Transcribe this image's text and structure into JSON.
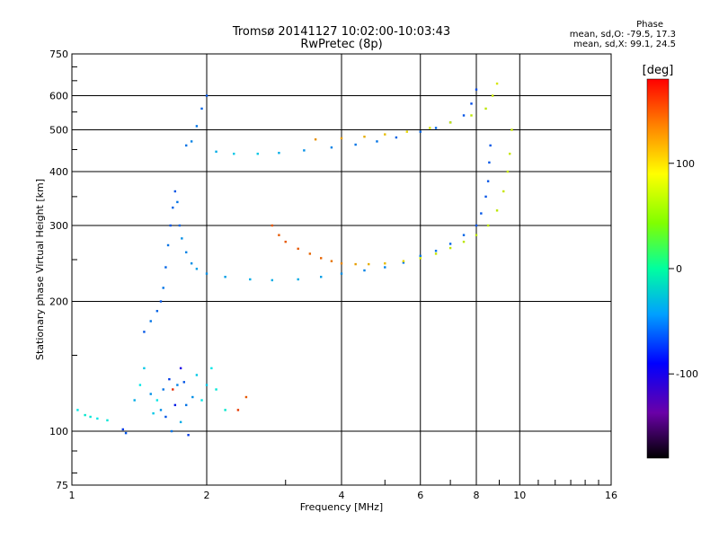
{
  "chart_data": {
    "type": "scatter",
    "title": "Tromsø 20141127 10:02:00-10:03:43",
    "subtitle": "RwPretec (8p)",
    "xlabel": "Frequency [MHz]",
    "ylabel": "Stationary phase Virtual Height [km]",
    "x_scale": "log",
    "y_scale": "log",
    "xlim": [
      1,
      16
    ],
    "ylim": [
      75,
      750
    ],
    "x_ticks": [
      1,
      2,
      4,
      6,
      8,
      10,
      16
    ],
    "y_ticks": [
      75,
      100,
      200,
      300,
      400,
      500,
      600,
      750
    ],
    "grid": true,
    "phase_legend": {
      "heading": "Phase",
      "line_o": "mean, sd,O: -79.5, 17.3",
      "line_x": "mean, sd,X:  99.1, 24.5"
    },
    "colorbar": {
      "label": "[deg]",
      "range": [
        -180,
        180
      ],
      "ticks": [
        100,
        0,
        -100
      ]
    },
    "series": [
      {
        "points": [
          [
            1.03,
            112,
            -60
          ],
          [
            1.07,
            109,
            -50
          ],
          [
            1.1,
            108,
            -55
          ],
          [
            1.14,
            107,
            -60
          ],
          [
            1.2,
            106,
            -55
          ],
          [
            1.3,
            101,
            -120
          ],
          [
            1.32,
            99,
            -110
          ],
          [
            1.38,
            118,
            -80
          ],
          [
            1.42,
            128,
            -60
          ],
          [
            1.45,
            140,
            -70
          ],
          [
            1.5,
            122,
            -90
          ],
          [
            1.52,
            110,
            -70
          ],
          [
            1.55,
            118,
            -60
          ],
          [
            1.58,
            112,
            -90
          ],
          [
            1.6,
            125,
            -100
          ],
          [
            1.62,
            108,
            -110
          ],
          [
            1.65,
            132,
            -120
          ],
          [
            1.67,
            100,
            -100
          ],
          [
            1.7,
            115,
            -130
          ],
          [
            1.72,
            128,
            -95
          ],
          [
            1.75,
            105,
            -80
          ],
          [
            1.78,
            130,
            -110
          ],
          [
            1.8,
            115,
            -100
          ],
          [
            1.82,
            98,
            -120
          ],
          [
            1.86,
            120,
            -90
          ],
          [
            1.9,
            135,
            -70
          ],
          [
            1.95,
            118,
            -60
          ],
          [
            2.0,
            128,
            -70
          ],
          [
            2.05,
            140,
            -60
          ],
          [
            2.1,
            125,
            -55
          ],
          [
            2.2,
            112,
            -50
          ],
          [
            2.35,
            112,
            160
          ],
          [
            2.45,
            120,
            150
          ],
          [
            1.68,
            125,
            165
          ],
          [
            1.75,
            140,
            -150
          ]
        ]
      },
      {
        "points": [
          [
            1.45,
            170,
            -110
          ],
          [
            1.5,
            180,
            -100
          ],
          [
            1.55,
            190,
            -105
          ],
          [
            1.58,
            200,
            -110
          ],
          [
            1.6,
            215,
            -100
          ],
          [
            1.62,
            240,
            -105
          ],
          [
            1.64,
            270,
            -100
          ],
          [
            1.66,
            300,
            -110
          ],
          [
            1.68,
            330,
            -105
          ],
          [
            1.7,
            360,
            -110
          ],
          [
            1.72,
            340,
            -100
          ],
          [
            1.74,
            300,
            -105
          ],
          [
            1.76,
            280,
            -90
          ],
          [
            1.8,
            260,
            -95
          ],
          [
            1.85,
            245,
            -90
          ],
          [
            1.9,
            238,
            -85
          ],
          [
            2.0,
            232,
            -90
          ],
          [
            2.2,
            228,
            -85
          ],
          [
            2.5,
            225,
            -80
          ],
          [
            2.8,
            224,
            -80
          ],
          [
            3.2,
            225,
            -80
          ],
          [
            3.6,
            228,
            -85
          ],
          [
            4.0,
            232,
            -90
          ],
          [
            4.5,
            236,
            -95
          ],
          [
            5.0,
            240,
            -95
          ],
          [
            5.5,
            246,
            -100
          ],
          [
            6.0,
            255,
            -100
          ],
          [
            6.5,
            262,
            -100
          ],
          [
            7.0,
            272,
            -105
          ],
          [
            7.5,
            285,
            -105
          ],
          [
            8.0,
            300,
            -110
          ],
          [
            8.2,
            320,
            -110
          ],
          [
            8.4,
            350,
            -110
          ],
          [
            8.5,
            380,
            -110
          ],
          [
            8.55,
            420,
            -110
          ],
          [
            8.6,
            460,
            -110
          ]
        ]
      },
      {
        "points": [
          [
            1.8,
            460,
            -100
          ],
          [
            1.85,
            470,
            -95
          ],
          [
            1.9,
            510,
            -100
          ],
          [
            1.95,
            560,
            -105
          ],
          [
            2.0,
            600,
            -110
          ],
          [
            2.1,
            445,
            -80
          ],
          [
            2.3,
            440,
            -70
          ],
          [
            2.6,
            440,
            -70
          ],
          [
            2.9,
            442,
            -80
          ],
          [
            3.3,
            448,
            -90
          ],
          [
            3.8,
            455,
            -95
          ],
          [
            4.3,
            462,
            -100
          ],
          [
            4.8,
            470,
            -100
          ],
          [
            5.3,
            480,
            -105
          ],
          [
            6.0,
            495,
            -105
          ],
          [
            6.5,
            505,
            -105
          ],
          [
            7.0,
            520,
            -110
          ],
          [
            7.5,
            540,
            -110
          ],
          [
            7.8,
            575,
            -115
          ],
          [
            8.0,
            620,
            -115
          ]
        ]
      },
      {
        "points": [
          [
            2.8,
            300,
            150
          ],
          [
            2.9,
            285,
            150
          ],
          [
            3.0,
            275,
            150
          ],
          [
            3.2,
            265,
            150
          ],
          [
            3.4,
            258,
            145
          ],
          [
            3.6,
            252,
            145
          ],
          [
            3.8,
            248,
            140
          ],
          [
            4.0,
            245,
            135
          ],
          [
            4.3,
            244,
            125
          ],
          [
            4.6,
            244,
            120
          ],
          [
            5.0,
            245,
            115
          ],
          [
            5.5,
            248,
            105
          ],
          [
            6.0,
            252,
            95
          ],
          [
            6.5,
            258,
            90
          ],
          [
            7.0,
            266,
            85
          ],
          [
            7.5,
            275,
            85
          ],
          [
            8.0,
            285,
            85
          ],
          [
            8.5,
            300,
            85
          ],
          [
            8.9,
            325,
            85
          ],
          [
            9.2,
            360,
            90
          ],
          [
            9.4,
            400,
            90
          ],
          [
            9.5,
            440,
            90
          ],
          [
            9.6,
            500,
            90
          ]
        ]
      },
      {
        "points": [
          [
            3.5,
            475,
            130
          ],
          [
            4.0,
            478,
            125
          ],
          [
            4.5,
            482,
            120
          ],
          [
            5.0,
            488,
            115
          ],
          [
            5.6,
            495,
            105
          ],
          [
            6.3,
            505,
            95
          ],
          [
            7.0,
            520,
            90
          ],
          [
            7.8,
            540,
            85
          ],
          [
            8.4,
            560,
            85
          ],
          [
            8.7,
            600,
            90
          ],
          [
            8.9,
            640,
            95
          ]
        ]
      }
    ]
  }
}
